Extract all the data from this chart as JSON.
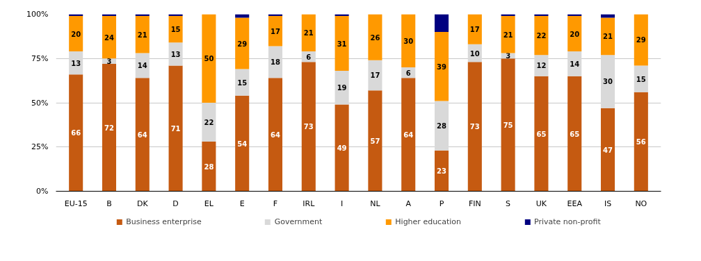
{
  "chart_data": {
    "type": "bar",
    "stacked": true,
    "categories": [
      "EU-15",
      "B",
      "DK",
      "D",
      "EL",
      "E",
      "F",
      "IRL",
      "I",
      "NL",
      "A",
      "P",
      "FIN",
      "S",
      "UK",
      "EEA",
      "IS",
      "NO"
    ],
    "ylim": [
      0,
      100
    ],
    "yticks": [
      {
        "value": 0,
        "label": "0%"
      },
      {
        "value": 25,
        "label": "25%"
      },
      {
        "value": 50,
        "label": "50%"
      },
      {
        "value": 75,
        "label": "75%"
      },
      {
        "value": 100,
        "label": "100%"
      }
    ],
    "grid": "y",
    "legend": "bottom",
    "series": [
      {
        "name": "Business enterprise",
        "color": "#c55a11",
        "values": [
          66,
          72,
          64,
          71,
          28,
          54,
          64,
          73,
          49,
          57,
          64,
          23,
          73,
          75,
          65,
          65,
          47,
          56
        ],
        "value_labels": [
          "66",
          "72",
          "64",
          "71",
          "28",
          "54",
          "64",
          "73",
          "49",
          "57",
          "64",
          "23",
          "73",
          "75",
          "65",
          "65",
          "47",
          "56"
        ]
      },
      {
        "name": "Government",
        "color": "#d9d9d9",
        "values": [
          13,
          3,
          14,
          13,
          22,
          15,
          18,
          6,
          19,
          17,
          6,
          28,
          10,
          3,
          12,
          14,
          30,
          15
        ],
        "value_labels": [
          "13",
          "3",
          "14",
          "13",
          "22",
          "15",
          "18",
          "6",
          "19",
          "17",
          "6",
          "28",
          "10",
          "3",
          "12",
          "14",
          "30",
          "15"
        ]
      },
      {
        "name": "Higher education",
        "color": "#ff9900",
        "values": [
          20,
          24,
          21,
          15,
          50,
          29,
          17,
          21,
          31,
          26,
          30,
          39,
          17,
          21,
          22,
          20,
          21,
          29
        ],
        "value_labels": [
          "20",
          "24",
          "21",
          "15",
          "50",
          "29",
          "17",
          "21",
          "31",
          "26",
          "30",
          "39",
          "17",
          "21",
          "22",
          "20",
          "21",
          "29"
        ]
      },
      {
        "name": "Private non-profit",
        "color": "#000080",
        "values": [
          1,
          1,
          1,
          1,
          0,
          2,
          1,
          0,
          1,
          0,
          0,
          10,
          0,
          1,
          1,
          1,
          2,
          0
        ]
      }
    ]
  }
}
